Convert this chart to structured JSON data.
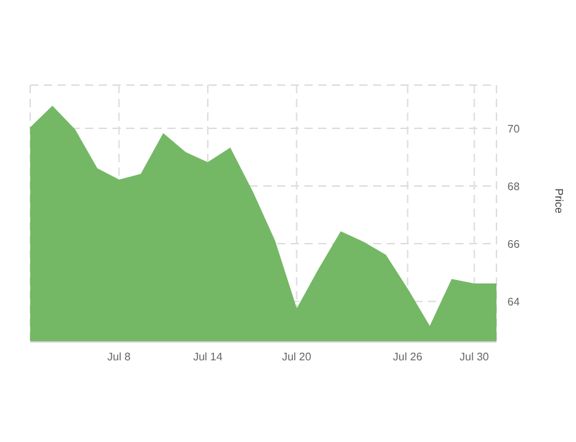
{
  "chart_data": {
    "type": "area",
    "ylabel": "Price",
    "categories": [
      null,
      null,
      null,
      null,
      "Jul 8",
      null,
      null,
      null,
      "Jul 14",
      null,
      null,
      null,
      "Jul 20",
      null,
      null,
      null,
      null,
      "Jul 26",
      null,
      null,
      "Jul 30",
      null
    ],
    "values": [
      70.0,
      70.75,
      69.95,
      68.6,
      68.2,
      68.4,
      69.8,
      69.15,
      68.8,
      69.3,
      67.8,
      66.1,
      63.7,
      65.1,
      66.4,
      66.05,
      65.6,
      64.4,
      63.1,
      64.75,
      64.6,
      64.6
    ],
    "color": "#74b865",
    "ylim": [
      62.6,
      71.5
    ],
    "yticks": [
      64,
      66,
      68,
      70
    ],
    "grid": true
  }
}
